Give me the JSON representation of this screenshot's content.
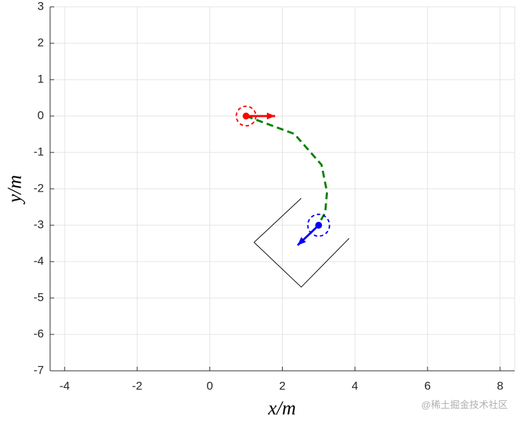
{
  "chart_data": {
    "type": "line",
    "xlabel": "x/m",
    "ylabel": "y/m",
    "xlim": [
      -4.4,
      8.4
    ],
    "ylim": [
      -7,
      3
    ],
    "xticks": [
      -4,
      -2,
      0,
      2,
      4,
      6,
      8
    ],
    "yticks": [
      -7,
      -6,
      -5,
      -4,
      -3,
      -2,
      -1,
      0,
      1,
      2,
      3
    ],
    "grid": true,
    "series": [
      {
        "color": "#008000",
        "dashed": true,
        "x": [
          1,
          2.33,
          3.08,
          3.23,
          3.18,
          2.99
        ],
        "values": [
          0,
          -0.49,
          -1.34,
          -2.09,
          -2.66,
          -2.98
        ]
      },
      {
        "color": "#000000",
        "x": [
          2.52,
          1.22,
          2.52,
          3.84
        ],
        "values": [
          -2.26,
          -3.47,
          -4.7,
          -3.36
        ]
      },
      {
        "color": "#ff0000",
        "arrow": true,
        "x": [
          1,
          1.8
        ],
        "values": [
          0,
          0
        ]
      },
      {
        "color": "#0000ff",
        "arrow": true,
        "x": [
          3,
          2.42
        ],
        "values": [
          -3,
          -3.55
        ]
      },
      {
        "color": "#ff0000",
        "marker": true,
        "x": [
          1
        ],
        "values": [
          0
        ]
      },
      {
        "color": "#0000ff",
        "marker": true,
        "x": [
          3
        ],
        "values": [
          -3
        ]
      },
      {
        "color": "#ff0000",
        "dashed": true,
        "x": [
          1
        ],
        "values": [
          0
        ],
        "radius": [
          0.27
        ]
      },
      {
        "color": "#0000ff",
        "dashed": true,
        "x": [
          3
        ],
        "values": [
          -3
        ],
        "radius": [
          0.3
        ]
      }
    ]
  },
  "watermark": "@稀土掘金技术社区"
}
